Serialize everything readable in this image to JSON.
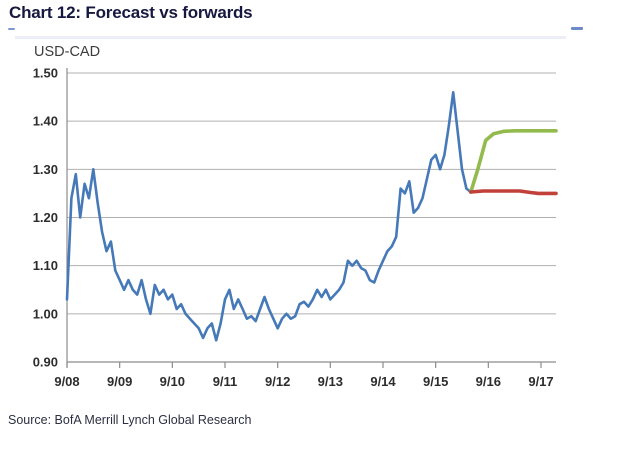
{
  "title": "Chart 12: Forecast vs forwards",
  "source": "Source: BofA Merrill Lynch Global Research",
  "chart_data": {
    "type": "line",
    "title": "Chart 12: Forecast vs forwards",
    "ylabel": "USD-CAD",
    "xlabel": "",
    "x_tick_labels": [
      "9/08",
      "9/09",
      "9/10",
      "9/11",
      "9/12",
      "9/13",
      "9/14",
      "9/15",
      "9/16",
      "9/17"
    ],
    "y_tick_labels": [
      "1.50",
      "1.40",
      "1.30",
      "1.20",
      "1.10",
      "1.00",
      "0.90"
    ],
    "ylim": [
      0.9,
      1.5
    ],
    "xlim_years_after_first_tick": [
      0,
      9.285
    ],
    "grid": "horizontal",
    "legend_position": "none",
    "colors": {
      "history": "#4579b8",
      "forecast": "#92ba4c",
      "forwards": "#c2403a",
      "gridline": "#b0b0b0",
      "axis": "#8c8c8c"
    },
    "series": [
      {
        "id": "history",
        "name": "USD-CAD spot history",
        "color": "#4579b8",
        "width": 2.6,
        "start_label": "9/08",
        "interval_months": 1,
        "values": [
          1.03,
          1.24,
          1.29,
          1.2,
          1.27,
          1.24,
          1.3,
          1.23,
          1.17,
          1.13,
          1.15,
          1.09,
          1.07,
          1.05,
          1.07,
          1.05,
          1.04,
          1.07,
          1.03,
          1.0,
          1.06,
          1.04,
          1.05,
          1.03,
          1.04,
          1.01,
          1.02,
          1.0,
          0.99,
          0.98,
          0.97,
          0.95,
          0.97,
          0.98,
          0.945,
          0.98,
          1.03,
          1.05,
          1.01,
          1.03,
          1.01,
          0.99,
          0.995,
          0.985,
          1.01,
          1.035,
          1.01,
          0.99,
          0.97,
          0.99,
          1.0,
          0.99,
          0.995,
          1.02,
          1.025,
          1.015,
          1.03,
          1.05,
          1.035,
          1.05,
          1.03,
          1.04,
          1.05,
          1.065,
          1.11,
          1.1,
          1.11,
          1.095,
          1.09,
          1.07,
          1.065,
          1.09,
          1.11,
          1.13,
          1.14,
          1.16,
          1.26,
          1.25,
          1.275,
          1.21,
          1.22,
          1.24,
          1.28,
          1.32,
          1.33,
          1.3,
          1.33,
          1.39,
          1.46,
          1.38,
          1.3,
          1.26,
          1.253
        ]
      },
      {
        "id": "forecast",
        "name": "Forecast",
        "color": "#92ba4c",
        "width": 3.6,
        "points": [
          [
            7.667,
            1.253
          ],
          [
            7.8,
            1.3
          ],
          [
            7.95,
            1.36
          ],
          [
            8.1,
            1.374
          ],
          [
            8.3,
            1.379
          ],
          [
            8.5,
            1.38
          ],
          [
            9.285,
            1.38
          ]
        ]
      },
      {
        "id": "forwards",
        "name": "Forwards",
        "color": "#c2403a",
        "width": 3.6,
        "points": [
          [
            7.667,
            1.253
          ],
          [
            7.9,
            1.255
          ],
          [
            8.6,
            1.255
          ],
          [
            8.8,
            1.252
          ],
          [
            8.95,
            1.25
          ],
          [
            9.285,
            1.25
          ]
        ]
      }
    ]
  }
}
